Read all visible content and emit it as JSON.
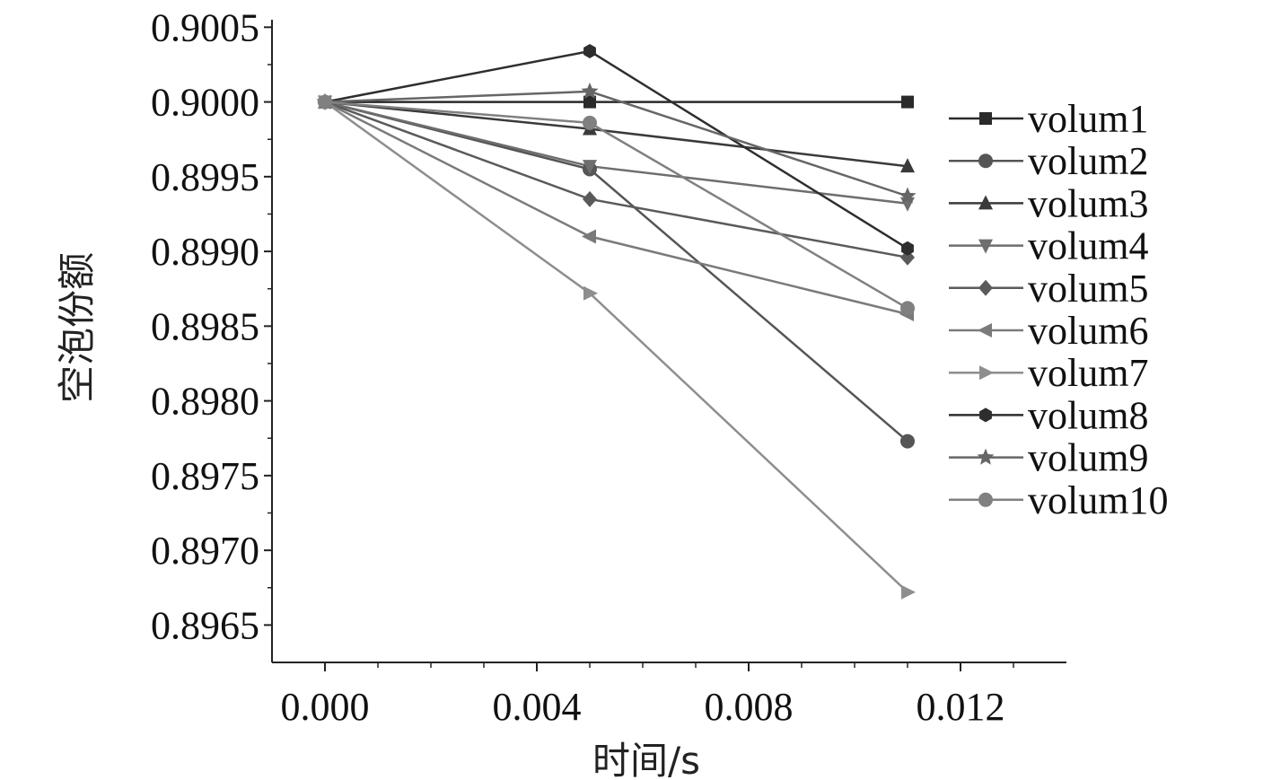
{
  "chart_data": {
    "type": "line",
    "xlabel": "时间/s",
    "ylabel": "空泡份额",
    "xlim": [
      -0.001,
      0.014
    ],
    "ylim": [
      0.89625,
      0.90055
    ],
    "x_ticks": [
      0.0,
      0.004,
      0.008,
      0.012
    ],
    "x_tick_labels": [
      "0.000",
      "0.004",
      "0.008",
      "0.012"
    ],
    "y_ticks": [
      0.8965,
      0.897,
      0.8975,
      0.898,
      0.8985,
      0.899,
      0.8995,
      0.9,
      0.9005
    ],
    "y_tick_labels": [
      "0.8965",
      "0.8970",
      "0.8975",
      "0.8980",
      "0.8985",
      "0.8990",
      "0.8995",
      "0.9000",
      "0.9005"
    ],
    "grid": false,
    "legend_position": "right",
    "x": [
      0.0,
      0.005,
      0.011
    ],
    "series": [
      {
        "name": "volum1",
        "marker": "square",
        "color": "#2a2a2a",
        "values": [
          0.9,
          0.9,
          0.9
        ]
      },
      {
        "name": "volum2",
        "marker": "circle",
        "color": "#555555",
        "values": [
          0.9,
          0.89955,
          0.89773
        ]
      },
      {
        "name": "volum3",
        "marker": "triangle-up",
        "color": "#3a3a3a",
        "values": [
          0.9,
          0.89982,
          0.89957
        ]
      },
      {
        "name": "volum4",
        "marker": "triangle-down",
        "color": "#6e6e6e",
        "values": [
          0.9,
          0.89957,
          0.89932
        ]
      },
      {
        "name": "volum5",
        "marker": "diamond",
        "color": "#5a5a5a",
        "values": [
          0.9,
          0.89935,
          0.89896
        ]
      },
      {
        "name": "volum6",
        "marker": "triangle-left",
        "color": "#7a7a7a",
        "values": [
          0.9,
          0.8991,
          0.89858
        ]
      },
      {
        "name": "volum7",
        "marker": "triangle-right",
        "color": "#8e8e8e",
        "values": [
          0.9,
          0.89872,
          0.89672
        ]
      },
      {
        "name": "volum8",
        "marker": "hexagon",
        "color": "#2e2e2e",
        "values": [
          0.9,
          0.90034,
          0.89902
        ]
      },
      {
        "name": "volum9",
        "marker": "star",
        "color": "#666666",
        "values": [
          0.9,
          0.90007,
          0.89937
        ]
      },
      {
        "name": "volum10",
        "marker": "circle",
        "color": "#808080",
        "values": [
          0.9,
          0.89986,
          0.89862
        ]
      }
    ]
  }
}
